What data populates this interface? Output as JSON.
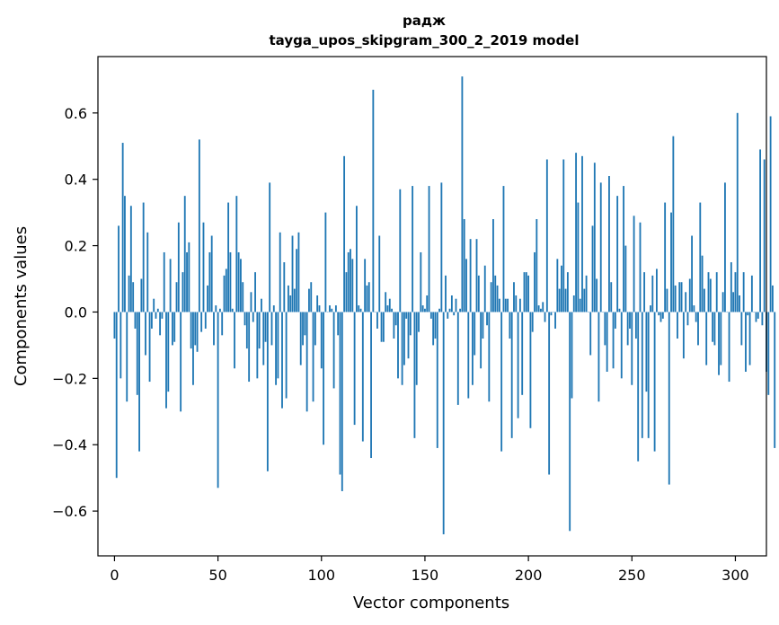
{
  "chart_data": {
    "type": "bar",
    "title": "радж",
    "subtitle": "tayga_upos_skipgram_300_2_2019 model",
    "xlabel": "Vector components",
    "ylabel": "Components values",
    "xlim": [
      -8,
      315
    ],
    "ylim": [
      -0.735,
      0.77
    ],
    "xticks": [
      0,
      50,
      100,
      150,
      200,
      250,
      300
    ],
    "xtick_labels": [
      "0",
      "50",
      "100",
      "150",
      "200",
      "250",
      "300"
    ],
    "yticks": [
      -0.6,
      -0.4,
      -0.2,
      0.0,
      0.2,
      0.4,
      0.6
    ],
    "ytick_labels": [
      "−0.6",
      "−0.4",
      "−0.2",
      "0.0",
      "0.2",
      "0.4",
      "0.6"
    ],
    "grid": false,
    "bar_color": "#1f77b4",
    "values": [
      -0.08,
      -0.5,
      0.26,
      -0.2,
      0.51,
      0.35,
      -0.27,
      0.11,
      0.32,
      0.09,
      -0.05,
      -0.25,
      -0.42,
      0.1,
      0.33,
      -0.13,
      0.24,
      -0.21,
      -0.05,
      0.04,
      -0.02,
      0.01,
      -0.07,
      -0.02,
      0.18,
      -0.29,
      -0.24,
      0.16,
      -0.1,
      -0.09,
      0.09,
      0.27,
      -0.3,
      0.12,
      0.35,
      0.18,
      0.21,
      -0.11,
      -0.22,
      -0.1,
      -0.12,
      0.52,
      -0.06,
      0.27,
      -0.05,
      0.08,
      0.18,
      0.23,
      -0.1,
      0.02,
      -0.53,
      0.01,
      -0.07,
      0.11,
      0.13,
      0.33,
      0.18,
      0.01,
      -0.17,
      0.35,
      0.18,
      0.16,
      0.09,
      -0.04,
      -0.11,
      -0.21,
      0.06,
      -0.03,
      0.12,
      -0.2,
      -0.11,
      0.04,
      -0.16,
      -0.09,
      -0.48,
      0.39,
      -0.1,
      0.02,
      -0.22,
      -0.2,
      0.24,
      -0.29,
      0.15,
      -0.26,
      0.08,
      0.05,
      0.23,
      0.07,
      0.19,
      0.24,
      -0.16,
      -0.1,
      -0.07,
      -0.3,
      0.07,
      0.09,
      -0.27,
      -0.1,
      0.05,
      0.02,
      -0.17,
      -0.4,
      0.3,
      0.0,
      0.02,
      0.01,
      -0.23,
      0.02,
      -0.07,
      -0.49,
      -0.54,
      0.47,
      0.12,
      0.18,
      0.19,
      0.16,
      -0.34,
      0.32,
      0.02,
      0.01,
      -0.39,
      0.16,
      0.08,
      0.09,
      -0.44,
      0.67,
      0.0,
      -0.05,
      0.23,
      -0.09,
      -0.09,
      0.06,
      0.02,
      0.04,
      0.01,
      -0.08,
      -0.04,
      -0.2,
      0.37,
      -0.22,
      -0.16,
      -0.02,
      -0.14,
      -0.07,
      0.38,
      -0.38,
      -0.22,
      -0.06,
      0.18,
      0.02,
      0.01,
      0.05,
      0.38,
      -0.02,
      -0.1,
      -0.08,
      -0.41,
      0.01,
      0.39,
      -0.67,
      0.11,
      -0.02,
      0.01,
      0.05,
      -0.01,
      0.04,
      -0.28,
      0.01,
      0.71,
      0.28,
      0.16,
      -0.26,
      0.22,
      -0.22,
      -0.13,
      0.22,
      0.11,
      -0.17,
      -0.08,
      0.14,
      -0.04,
      -0.27,
      0.09,
      0.28,
      0.11,
      0.08,
      0.04,
      -0.42,
      0.38,
      0.04,
      0.04,
      -0.08,
      -0.38,
      0.09,
      0.05,
      -0.32,
      0.04,
      -0.25,
      0.12,
      0.12,
      0.11,
      -0.35,
      -0.06,
      0.18,
      0.28,
      0.02,
      0.01,
      0.03,
      -0.03,
      0.46,
      -0.49,
      -0.01,
      0.0,
      -0.05,
      0.16,
      0.07,
      0.14,
      0.46,
      0.07,
      0.12,
      -0.66,
      -0.26,
      0.05,
      0.48,
      0.33,
      0.04,
      0.47,
      0.07,
      0.11,
      0.0,
      -0.13,
      0.26,
      0.45,
      0.1,
      -0.27,
      0.39,
      0.0,
      -0.1,
      -0.18,
      0.41,
      0.09,
      -0.17,
      -0.05,
      0.35,
      0.01,
      -0.2,
      0.38,
      0.2,
      -0.1,
      -0.05,
      -0.22,
      0.29,
      -0.08,
      -0.45,
      0.27,
      -0.38,
      0.12,
      -0.24,
      -0.38,
      0.02,
      0.11,
      -0.42,
      0.13,
      -0.01,
      -0.03,
      -0.02,
      0.33,
      0.07,
      -0.52,
      0.3,
      0.53,
      0.08,
      -0.08,
      0.09,
      0.09,
      -0.14,
      0.06,
      -0.04,
      0.1,
      0.23,
      0.02,
      -0.03,
      -0.1,
      0.33,
      0.17,
      0.07,
      -0.16,
      0.12,
      0.1,
      -0.09,
      -0.1,
      0.12,
      -0.19,
      -0.16,
      0.06,
      0.39,
      0.0,
      -0.21,
      0.15,
      0.06,
      0.12,
      0.6,
      0.05,
      -0.1,
      0.12,
      -0.18,
      -0.01,
      -0.16,
      0.11,
      0.0,
      -0.03,
      -0.02,
      0.49,
      -0.04,
      0.46,
      -0.18,
      -0.25,
      0.59,
      0.08,
      -0.41
    ]
  }
}
